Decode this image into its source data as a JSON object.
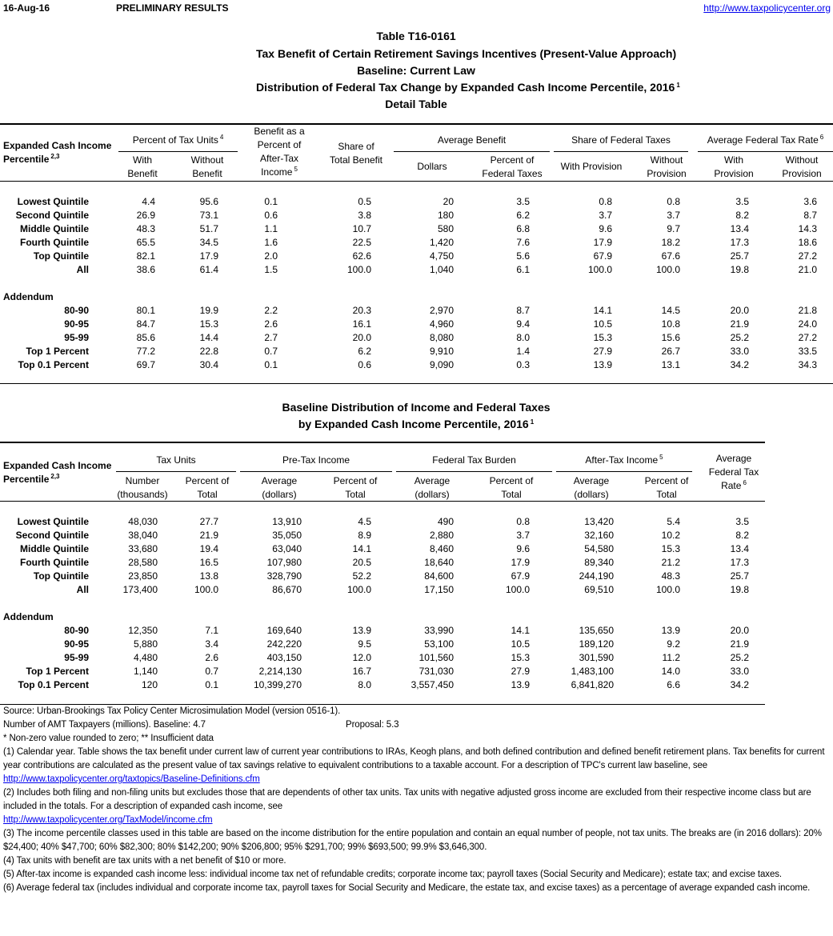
{
  "header": {
    "date": "16-Aug-16",
    "status": "PRELIMINARY RESULTS",
    "url": "http://www.taxpolicycenter.org"
  },
  "titles": [
    {
      "text": "Table T16-0161"
    },
    {
      "text": "Tax Benefit of Certain Retirement Savings Incentives (Present-Value Approach)"
    },
    {
      "text": "Baseline: Current Law"
    },
    {
      "text": "Distribution of Federal Tax Change by Expanded Cash Income Percentile, 2016",
      "sup": "1"
    },
    {
      "text": "Detail Table"
    }
  ],
  "table1": {
    "stub": {
      "lines": [
        "Expanded Cash Income",
        "Percentile"
      ],
      "sup": "2,3"
    },
    "groups": [
      {
        "lines": [
          "Percent of Tax Units"
        ],
        "sup": "4"
      },
      {
        "lines": [
          "Average Benefit"
        ]
      },
      {
        "lines": [
          "Share of Federal Taxes"
        ]
      },
      {
        "lines": [
          "Average Federal Tax Rate"
        ],
        "sup": "6"
      }
    ],
    "columns": [
      {
        "lines": [
          "With",
          "Benefit"
        ]
      },
      {
        "lines": [
          "Without",
          "Benefit"
        ]
      },
      {
        "lines": [
          "Benefit as a",
          "Percent of",
          "After-Tax",
          "Income"
        ],
        "sup": "5"
      },
      {
        "lines": [
          "Share of",
          "Total Benefit"
        ]
      },
      {
        "lines": [
          "Dollars"
        ]
      },
      {
        "lines": [
          "Percent of",
          "Federal Taxes"
        ]
      },
      {
        "lines": [
          "With Provision"
        ]
      },
      {
        "lines": [
          "Without",
          "Provision"
        ]
      },
      {
        "lines": [
          "With",
          "Provision"
        ]
      },
      {
        "lines": [
          "Without",
          "Provision"
        ]
      }
    ],
    "rows": [
      {
        "label": "Lowest Quintile",
        "values": [
          "4.4",
          "95.6",
          "0.1",
          "0.5",
          "20",
          "3.5",
          "0.8",
          "0.8",
          "3.5",
          "3.6"
        ]
      },
      {
        "label": "Second Quintile",
        "values": [
          "26.9",
          "73.1",
          "0.6",
          "3.8",
          "180",
          "6.2",
          "3.7",
          "3.7",
          "8.2",
          "8.7"
        ]
      },
      {
        "label": "Middle Quintile",
        "values": [
          "48.3",
          "51.7",
          "1.1",
          "10.7",
          "580",
          "6.8",
          "9.6",
          "9.7",
          "13.4",
          "14.3"
        ]
      },
      {
        "label": "Fourth Quintile",
        "values": [
          "65.5",
          "34.5",
          "1.6",
          "22.5",
          "1,420",
          "7.6",
          "17.9",
          "18.2",
          "17.3",
          "18.6"
        ]
      },
      {
        "label": "Top Quintile",
        "values": [
          "82.1",
          "17.9",
          "2.0",
          "62.6",
          "4,750",
          "5.6",
          "67.9",
          "67.6",
          "25.7",
          "27.2"
        ]
      },
      {
        "label": "All",
        "values": [
          "38.6",
          "61.4",
          "1.5",
          "100.0",
          "1,040",
          "6.1",
          "100.0",
          "100.0",
          "19.8",
          "21.0"
        ]
      }
    ],
    "addendum": {
      "label": "Addendum",
      "rows": [
        {
          "label": "80-90",
          "values": [
            "80.1",
            "19.9",
            "2.2",
            "20.3",
            "2,970",
            "8.7",
            "14.1",
            "14.5",
            "20.0",
            "21.8"
          ]
        },
        {
          "label": "90-95",
          "values": [
            "84.7",
            "15.3",
            "2.6",
            "16.1",
            "4,960",
            "9.4",
            "10.5",
            "10.8",
            "21.9",
            "24.0"
          ]
        },
        {
          "label": "95-99",
          "values": [
            "85.6",
            "14.4",
            "2.7",
            "20.0",
            "8,080",
            "8.0",
            "15.3",
            "15.6",
            "25.2",
            "27.2"
          ]
        },
        {
          "label": "Top 1 Percent",
          "values": [
            "77.2",
            "22.8",
            "0.7",
            "6.2",
            "9,910",
            "1.4",
            "27.9",
            "26.7",
            "33.0",
            "33.5"
          ]
        },
        {
          "label": "Top 0.1 Percent",
          "values": [
            "69.7",
            "30.4",
            "0.1",
            "0.6",
            "9,090",
            "0.3",
            "13.9",
            "13.1",
            "34.2",
            "34.3"
          ]
        }
      ]
    }
  },
  "table2": {
    "titles": [
      {
        "text": "Baseline Distribution of Income and Federal Taxes"
      },
      {
        "text": "by Expanded Cash Income Percentile, 2016",
        "sup": "1"
      }
    ],
    "stub": {
      "lines": [
        "Expanded Cash Income",
        "Percentile"
      ],
      "sup": "2,3"
    },
    "groups": [
      {
        "lines": [
          "Tax Units"
        ]
      },
      {
        "lines": [
          "Pre-Tax Income"
        ]
      },
      {
        "lines": [
          "Federal Tax Burden"
        ]
      },
      {
        "lines": [
          "After-Tax Income"
        ],
        "sup": "5"
      }
    ],
    "columns": [
      {
        "lines": [
          "Number",
          "(thousands)"
        ]
      },
      {
        "lines": [
          "Percent of",
          "Total"
        ]
      },
      {
        "lines": [
          "Average",
          "(dollars)"
        ]
      },
      {
        "lines": [
          "Percent of",
          "Total"
        ]
      },
      {
        "lines": [
          "Average",
          "(dollars)"
        ]
      },
      {
        "lines": [
          "Percent of",
          "Total"
        ]
      },
      {
        "lines": [
          "Average",
          "(dollars)"
        ]
      },
      {
        "lines": [
          "Percent of",
          "Total"
        ]
      },
      {
        "lines": [
          "Average",
          "Federal Tax",
          "Rate"
        ],
        "sup": "6"
      }
    ],
    "rows": [
      {
        "label": "Lowest Quintile",
        "values": [
          "48,030",
          "27.7",
          "13,910",
          "4.5",
          "490",
          "0.8",
          "13,420",
          "5.4",
          "3.5"
        ]
      },
      {
        "label": "Second Quintile",
        "values": [
          "38,040",
          "21.9",
          "35,050",
          "8.9",
          "2,880",
          "3.7",
          "32,160",
          "10.2",
          "8.2"
        ]
      },
      {
        "label": "Middle Quintile",
        "values": [
          "33,680",
          "19.4",
          "63,040",
          "14.1",
          "8,460",
          "9.6",
          "54,580",
          "15.3",
          "13.4"
        ]
      },
      {
        "label": "Fourth Quintile",
        "values": [
          "28,580",
          "16.5",
          "107,980",
          "20.5",
          "18,640",
          "17.9",
          "89,340",
          "21.2",
          "17.3"
        ]
      },
      {
        "label": "Top Quintile",
        "values": [
          "23,850",
          "13.8",
          "328,790",
          "52.2",
          "84,600",
          "67.9",
          "244,190",
          "48.3",
          "25.7"
        ]
      },
      {
        "label": "All",
        "values": [
          "173,400",
          "100.0",
          "86,670",
          "100.0",
          "17,150",
          "100.0",
          "69,510",
          "100.0",
          "19.8"
        ]
      }
    ],
    "addendum": {
      "label": "Addendum",
      "rows": [
        {
          "label": "80-90",
          "values": [
            "12,350",
            "7.1",
            "169,640",
            "13.9",
            "33,990",
            "14.1",
            "135,650",
            "13.9",
            "20.0"
          ]
        },
        {
          "label": "90-95",
          "values": [
            "5,880",
            "3.4",
            "242,220",
            "9.5",
            "53,100",
            "10.5",
            "189,120",
            "9.2",
            "21.9"
          ]
        },
        {
          "label": "95-99",
          "values": [
            "4,480",
            "2.6",
            "403,150",
            "12.0",
            "101,560",
            "15.3",
            "301,590",
            "11.2",
            "25.2"
          ]
        },
        {
          "label": "Top 1 Percent",
          "values": [
            "1,140",
            "0.7",
            "2,214,130",
            "16.7",
            "731,030",
            "27.9",
            "1,483,100",
            "14.0",
            "33.0"
          ]
        },
        {
          "label": "Top 0.1 Percent",
          "values": [
            "120",
            "0.1",
            "10,399,270",
            "8.0",
            "3,557,450",
            "13.9",
            "6,841,820",
            "6.6",
            "34.2"
          ]
        }
      ]
    }
  },
  "notes": {
    "source": "Source: Urban-Brookings Tax Policy Center Microsimulation Model (version 0516-1).",
    "amt": {
      "baseline": "Number of AMT Taxpayers (millions).  Baseline: 4.7",
      "proposal": "Proposal: 5.3"
    },
    "flags": "* Non-zero value rounded to zero; ** Insufficient data",
    "footnotes": [
      {
        "text": "(1) Calendar year. Table shows the tax benefit under current law of current year contributions to IRAs, Keogh plans, and both defined contribution and defined benefit retirement plans. Tax benefits for current year contributions are calculated as the present value of tax savings relative to equivalent contributions to a taxable account. For a description of TPC's current law baseline, see",
        "link": "http://www.taxpolicycenter.org/taxtopics/Baseline-Definitions.cfm"
      },
      {
        "text": "(2) Includes both filing and non-filing units but excludes those that are dependents of other tax units. Tax units with negative adjusted gross income are excluded from their respective income class but are included in the totals. For a description of expanded cash income, see",
        "link": "http://www.taxpolicycenter.org/TaxModel/income.cfm"
      },
      {
        "text": "(3) The income percentile classes used in this table are based on the income distribution for the entire population and contain an equal number of people, not tax units. The breaks are (in 2016 dollars): 20% $24,400; 40% $47,700; 60% $82,300; 80% $142,200; 90% $206,800; 95% $291,700; 99% $693,500; 99.9% $3,646,300."
      },
      {
        "text": "(4) Tax units with benefit are tax units with a net benefit of $10 or more."
      },
      {
        "text": "(5) After-tax income is expanded cash income less: individual income tax net of refundable credits; corporate income tax; payroll taxes (Social Security and Medicare); estate tax; and excise taxes."
      },
      {
        "text": "(6) Average federal tax (includes individual and corporate income tax, payroll taxes for Social Security and Medicare, the estate tax, and excise taxes) as a percentage of average expanded cash income."
      }
    ]
  }
}
